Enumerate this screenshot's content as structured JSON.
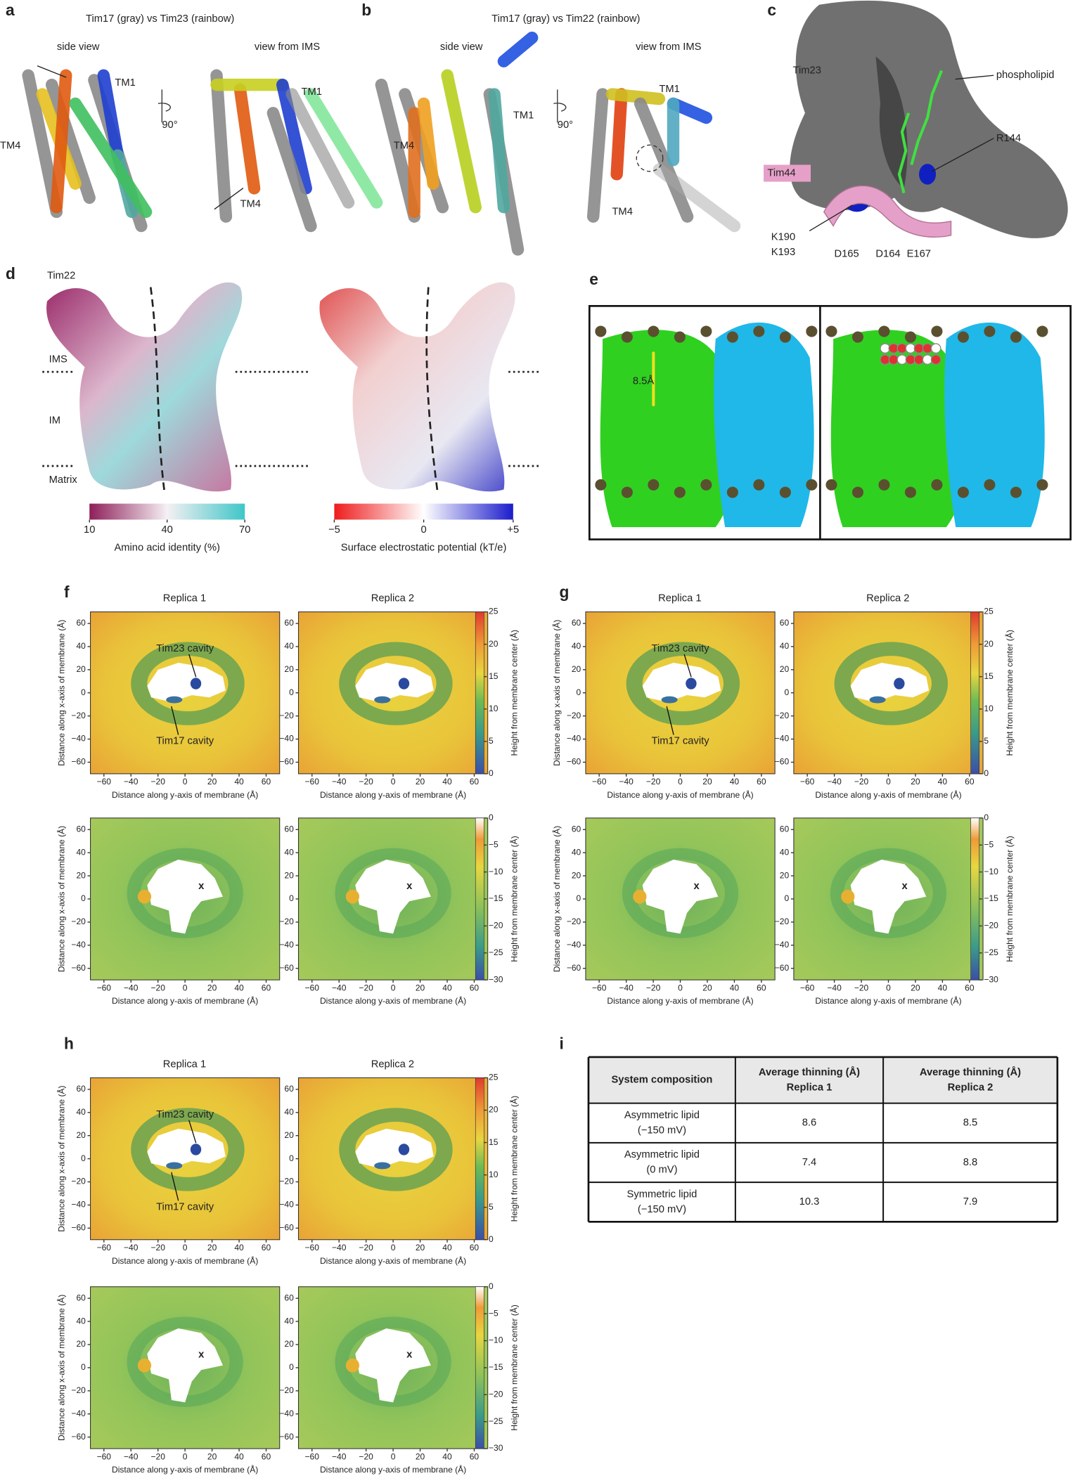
{
  "panels": {
    "a": {
      "label": "a",
      "title": "Tim17 (gray) vs Tim23 (rainbow)",
      "views": [
        "side view",
        "view from IMS"
      ],
      "texts": [
        "TM1",
        "TM4",
        "90°",
        "TM1",
        "TM4"
      ]
    },
    "b": {
      "label": "b",
      "title": "Tim17 (gray) vs Tim22 (rainbow)",
      "views": [
        "side view",
        "view from IMS"
      ],
      "texts": [
        "TM1",
        "TM4",
        "90°",
        "TM1",
        "TM4"
      ]
    },
    "c": {
      "label": "c",
      "texts": [
        "Tim23",
        "phospholipid",
        "R144",
        "Tim44",
        "K190",
        "K193",
        "D165",
        "D164",
        "E167"
      ]
    },
    "d": {
      "label": "d",
      "title": "Tim22",
      "regions": [
        "IMS",
        "IM",
        "Matrix"
      ],
      "identity_bar": {
        "lim": [
          10,
          70
        ],
        "ticks": [
          10,
          40,
          70
        ],
        "label": "Amino acid identity (%)"
      },
      "potential_bar": {
        "lim": [
          -5,
          5
        ],
        "ticks": [
          {
            "value": -5,
            "label": "−5"
          },
          0,
          {
            "value": 5,
            "label": "+5"
          }
        ],
        "label": "Surface electrostatic potential (kT/e)"
      }
    },
    "e": {
      "label": "e",
      "annotation": "8.5Å"
    },
    "f": {
      "label": "f",
      "replicas": [
        "Replica 1",
        "Replica 2"
      ],
      "annotations": [
        "Tim23 cavity",
        "Tim17 cavity"
      ]
    },
    "g": {
      "label": "g",
      "replicas": [
        "Replica 1",
        "Replica 2"
      ],
      "annotations": [
        "Tim23 cavity",
        "Tim17 cavity"
      ]
    },
    "h": {
      "label": "h",
      "replicas": [
        "Replica 1",
        "Replica 2"
      ],
      "annotations": [
        "Tim23 cavity",
        "Tim17 cavity"
      ]
    },
    "i": {
      "label": "i"
    }
  },
  "heatmap_axes": {
    "xlabel": "Distance along y-axis of membrane (Å)",
    "ylabel": "Distance along x-axis of membrane (Å)",
    "xlim": [
      -70,
      70
    ],
    "ylim": [
      -70,
      70
    ],
    "xticks": [
      {
        "value": -60,
        "label": "−60"
      },
      {
        "value": -40,
        "label": "−40"
      },
      {
        "value": -20,
        "label": "−20"
      },
      0,
      20,
      40,
      60
    ],
    "yticks": [
      {
        "value": -60,
        "label": "−60"
      },
      {
        "value": -40,
        "label": "−40"
      },
      {
        "value": -20,
        "label": "−20"
      },
      0,
      20,
      40,
      60
    ],
    "marker": "x",
    "upper_colorbar": {
      "lim": [
        0,
        25
      ],
      "ticks": [
        0,
        5,
        10,
        15,
        20,
        25
      ],
      "label": "Height from membrane center (Å)"
    },
    "lower_colorbar": {
      "lim": [
        -30,
        0
      ],
      "ticks": [
        0,
        {
          "value": -5,
          "label": "−5"
        },
        {
          "value": -10,
          "label": "−10"
        },
        {
          "value": -15,
          "label": "−15"
        },
        {
          "value": -20,
          "label": "−20"
        },
        {
          "value": -25,
          "label": "−25"
        },
        {
          "value": -30,
          "label": "−30"
        }
      ],
      "label": "Height from membrane center (Å)"
    }
  },
  "table": {
    "header": [
      [
        "System composition"
      ],
      [
        "Average thinning (Å)",
        "Replica 1"
      ],
      [
        "Average thinning (Å)",
        "Replica 2"
      ]
    ],
    "rows": [
      [
        [
          "Asymmetric lipid",
          "(−150 mV)"
        ],
        8.6,
        8.5
      ],
      [
        [
          "Asymmetric lipid",
          "(0 mV)"
        ],
        7.4,
        8.8
      ],
      [
        [
          "Symmetric lipid",
          "(−150 mV)"
        ],
        10.3,
        7.9
      ]
    ]
  }
}
